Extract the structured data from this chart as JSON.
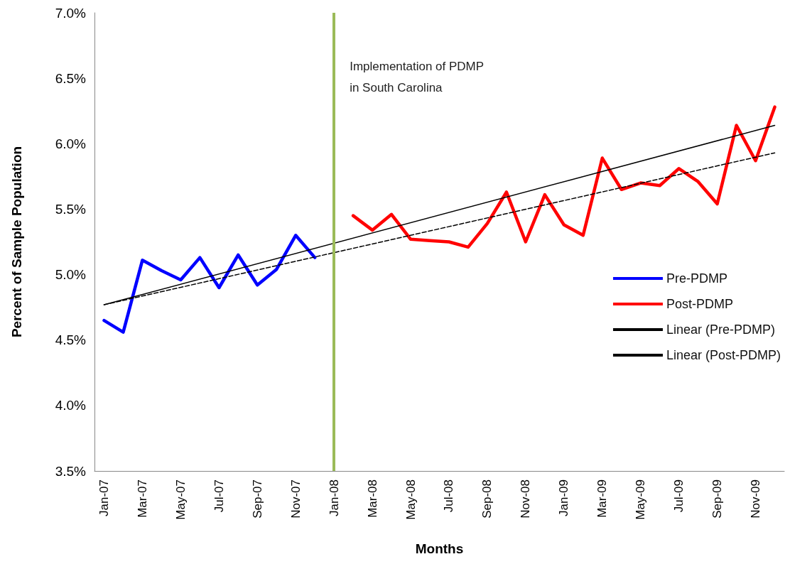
{
  "chart_data": {
    "type": "line",
    "xlabel": "Months",
    "ylabel": "Percent of Sample Population",
    "categories": [
      "Jan-07",
      null,
      "Mar-07",
      null,
      "May-07",
      null,
      "Jul-07",
      null,
      "Sep-07",
      null,
      "Nov-07",
      null,
      "Jan-08",
      null,
      "Mar-08",
      null,
      "May-08",
      null,
      "Jul-08",
      null,
      "Sep-08",
      null,
      "Nov-08",
      null,
      "Jan-09",
      null,
      "Mar-09",
      null,
      "May-09",
      null,
      "Jul-09",
      null,
      "Sep-09",
      null,
      "Nov-09",
      null
    ],
    "series": [
      {
        "name": "Pre-PDMP",
        "color": "#0000ff",
        "values": [
          4.65,
          4.56,
          5.11,
          5.03,
          4.96,
          5.13,
          4.9,
          5.15,
          4.92,
          5.04,
          5.3,
          5.13,
          null,
          null,
          null,
          null,
          null,
          null,
          null,
          null,
          null,
          null,
          null,
          null,
          null,
          null,
          null,
          null,
          null,
          null,
          null,
          null,
          null,
          null,
          null,
          null
        ]
      },
      {
        "name": "Post-PDMP",
        "color": "#ff0000",
        "values": [
          null,
          null,
          null,
          null,
          null,
          null,
          null,
          null,
          null,
          null,
          null,
          null,
          null,
          5.45,
          5.34,
          5.46,
          5.27,
          5.26,
          5.25,
          5.21,
          5.39,
          5.63,
          5.25,
          5.61,
          5.38,
          5.3,
          5.89,
          5.65,
          5.7,
          5.68,
          5.81,
          5.71,
          5.54,
          6.14,
          5.87,
          6.28
        ]
      },
      {
        "name": "Linear (Pre-PDMP)",
        "color": "#000000",
        "line_style": "solid",
        "values": [
          4.77,
          null,
          null,
          null,
          null,
          null,
          null,
          null,
          null,
          null,
          null,
          null,
          null,
          null,
          null,
          null,
          null,
          null,
          null,
          null,
          null,
          null,
          null,
          null,
          null,
          null,
          null,
          null,
          null,
          null,
          null,
          null,
          null,
          null,
          null,
          6.14
        ]
      },
      {
        "name": "Linear (Post-PDMP)",
        "color": "#000000",
        "line_style": "dashed",
        "values": [
          4.77,
          null,
          null,
          null,
          null,
          null,
          null,
          null,
          null,
          null,
          null,
          null,
          null,
          null,
          null,
          null,
          null,
          null,
          null,
          null,
          null,
          null,
          null,
          null,
          null,
          null,
          null,
          null,
          null,
          null,
          null,
          null,
          null,
          null,
          null,
          5.93
        ]
      }
    ],
    "ylim": [
      3.5,
      7.0
    ],
    "yticks": [
      {
        "value": 3.5,
        "label": "3.5%"
      },
      {
        "value": 4.0,
        "label": "4.0%"
      },
      {
        "value": 4.5,
        "label": "4.5%"
      },
      {
        "value": 5.0,
        "label": "5.0%"
      },
      {
        "value": 5.5,
        "label": "5.5%"
      },
      {
        "value": 6.0,
        "label": "6.0%"
      },
      {
        "value": 6.5,
        "label": "6.5%"
      },
      {
        "value": 7.0,
        "label": "7.0%"
      }
    ],
    "ref_lines": [
      {
        "axis": "x",
        "value": "Jan-08",
        "label": "Implementation of PDMP\nin South Carolina",
        "color": "#9bbb59"
      }
    ],
    "grid": false,
    "legend": "right",
    "marker": "none",
    "line_style": "solid"
  }
}
